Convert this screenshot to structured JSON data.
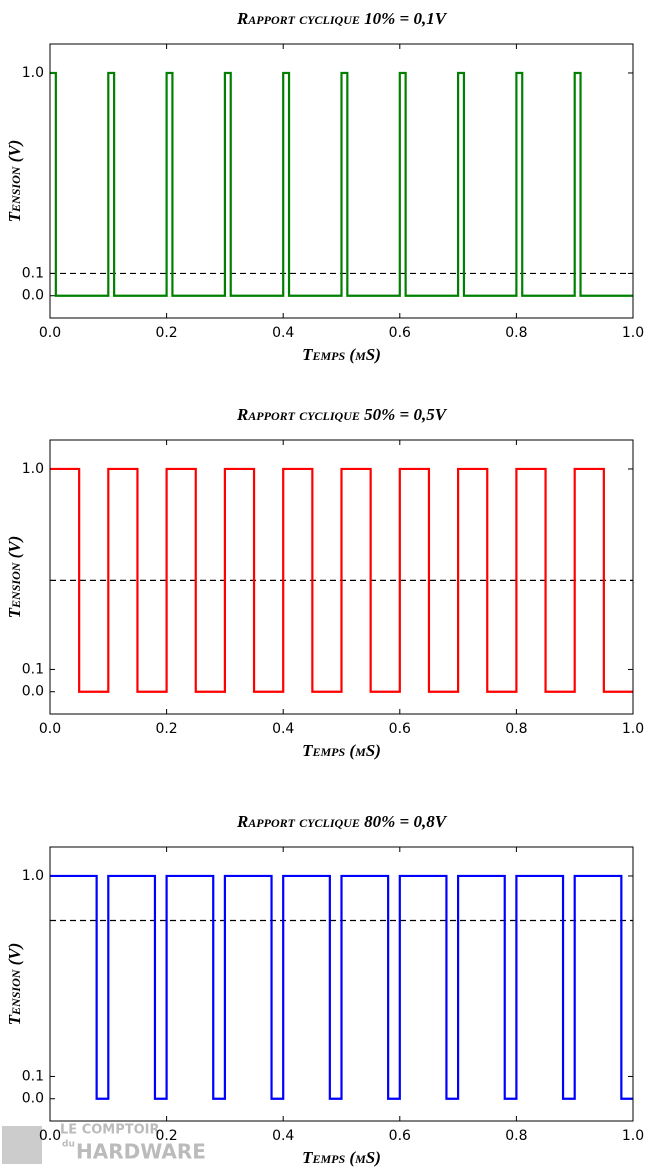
{
  "chart_data": [
    {
      "type": "line",
      "title": "Rapport cyclique 10% = 0,1V",
      "xlabel": "Temps (µS)",
      "ylabel": "Tension (V)",
      "xlim": [
        0,
        1
      ],
      "ylim": [
        -0.1,
        1.13
      ],
      "xticks": [
        {
          "value": 0,
          "label": "0.0"
        },
        {
          "value": 0.2,
          "label": "0.2"
        },
        {
          "value": 0.4,
          "label": "0.4"
        },
        {
          "value": 0.6,
          "label": "0.6"
        },
        {
          "value": 0.8,
          "label": "0.8"
        },
        {
          "value": 1,
          "label": "1.0"
        }
      ],
      "yticks": [
        {
          "value": 0,
          "label": "0.0"
        },
        {
          "value": 0.1,
          "label": "0.1"
        },
        {
          "value": 1,
          "label": "1.0"
        }
      ],
      "reference_line": {
        "value": 0.1,
        "color": "#000000",
        "dashed": true
      },
      "series": [
        {
          "color": "#008000",
          "x": [
            0,
            0.01,
            0.01,
            0.1,
            0.1,
            0.11,
            0.11,
            0.2,
            0.2,
            0.21,
            0.21,
            0.3,
            0.3,
            0.31,
            0.31,
            0.4,
            0.4,
            0.41,
            0.41,
            0.5,
            0.5,
            0.51,
            0.51,
            0.6,
            0.6,
            0.61,
            0.61,
            0.7,
            0.7,
            0.71,
            0.71,
            0.8,
            0.8,
            0.81,
            0.81,
            0.9,
            0.9,
            0.91,
            0.91,
            1.0
          ],
          "values": [
            1,
            1,
            0,
            0,
            1,
            1,
            0,
            0,
            1,
            1,
            0,
            0,
            1,
            1,
            0,
            0,
            1,
            1,
            0,
            0,
            1,
            1,
            0,
            0,
            1,
            1,
            0,
            0,
            1,
            1,
            0,
            0,
            1,
            1,
            0,
            0,
            1,
            1,
            0,
            0
          ]
        }
      ]
    },
    {
      "type": "line",
      "title": "Rapport cyclique 50% = 0,5V",
      "xlabel": "Temps (µS)",
      "ylabel": "Tension (V)",
      "xlim": [
        0,
        1
      ],
      "ylim": [
        -0.1,
        1.13
      ],
      "xticks": [
        {
          "value": 0,
          "label": "0.0"
        },
        {
          "value": 0.2,
          "label": "0.2"
        },
        {
          "value": 0.4,
          "label": "0.4"
        },
        {
          "value": 0.6,
          "label": "0.6"
        },
        {
          "value": 0.8,
          "label": "0.8"
        },
        {
          "value": 1,
          "label": "1.0"
        }
      ],
      "yticks": [
        {
          "value": 0,
          "label": "0.0"
        },
        {
          "value": 0.1,
          "label": "0.1"
        },
        {
          "value": 1,
          "label": "1.0"
        }
      ],
      "reference_line": {
        "value": 0.5,
        "color": "#000000",
        "dashed": true
      },
      "series": [
        {
          "color": "#ff0000",
          "x": [
            0,
            0.05,
            0.05,
            0.1,
            0.1,
            0.15,
            0.15,
            0.2,
            0.2,
            0.25,
            0.25,
            0.3,
            0.3,
            0.35,
            0.35,
            0.4,
            0.4,
            0.45,
            0.45,
            0.5,
            0.5,
            0.55,
            0.55,
            0.6,
            0.6,
            0.65,
            0.65,
            0.7,
            0.7,
            0.75,
            0.75,
            0.8,
            0.8,
            0.85,
            0.85,
            0.9,
            0.9,
            0.95,
            0.95,
            1.0
          ],
          "values": [
            1,
            1,
            0,
            0,
            1,
            1,
            0,
            0,
            1,
            1,
            0,
            0,
            1,
            1,
            0,
            0,
            1,
            1,
            0,
            0,
            1,
            1,
            0,
            0,
            1,
            1,
            0,
            0,
            1,
            1,
            0,
            0,
            1,
            1,
            0,
            0,
            1,
            1,
            0,
            0
          ]
        }
      ]
    },
    {
      "type": "line",
      "title": "Rapport cyclique 80% = 0,8V",
      "xlabel": "Temps (µS)",
      "ylabel": "Tension (V)",
      "xlim": [
        0,
        1
      ],
      "ylim": [
        -0.1,
        1.13
      ],
      "xticks": [
        {
          "value": 0,
          "label": "0.0"
        },
        {
          "value": 0.2,
          "label": "0.2"
        },
        {
          "value": 0.4,
          "label": "0.4"
        },
        {
          "value": 0.6,
          "label": "0.6"
        },
        {
          "value": 0.8,
          "label": "0.8"
        },
        {
          "value": 1,
          "label": "1.0"
        }
      ],
      "yticks": [
        {
          "value": 0,
          "label": "0.0"
        },
        {
          "value": 0.1,
          "label": "0.1"
        },
        {
          "value": 1,
          "label": "1.0"
        }
      ],
      "reference_line": {
        "value": 0.8,
        "color": "#000000",
        "dashed": true
      },
      "series": [
        {
          "color": "#0000ff",
          "x": [
            0,
            0.08,
            0.08,
            0.1,
            0.1,
            0.18,
            0.18,
            0.2,
            0.2,
            0.28,
            0.28,
            0.3,
            0.3,
            0.38,
            0.38,
            0.4,
            0.4,
            0.48,
            0.48,
            0.5,
            0.5,
            0.58,
            0.58,
            0.6,
            0.6,
            0.68,
            0.68,
            0.7,
            0.7,
            0.78,
            0.78,
            0.8,
            0.8,
            0.88,
            0.88,
            0.9,
            0.9,
            0.98,
            0.98,
            1.0
          ],
          "values": [
            1,
            1,
            0,
            0,
            1,
            1,
            0,
            0,
            1,
            1,
            0,
            0,
            1,
            1,
            0,
            0,
            1,
            1,
            0,
            0,
            1,
            1,
            0,
            0,
            1,
            1,
            0,
            0,
            1,
            1,
            0,
            0,
            1,
            1,
            0,
            0,
            1,
            1,
            0,
            0
          ]
        }
      ]
    }
  ],
  "watermark": [
    "LE COMPTOIR",
    "du",
    "HARDWARE"
  ]
}
